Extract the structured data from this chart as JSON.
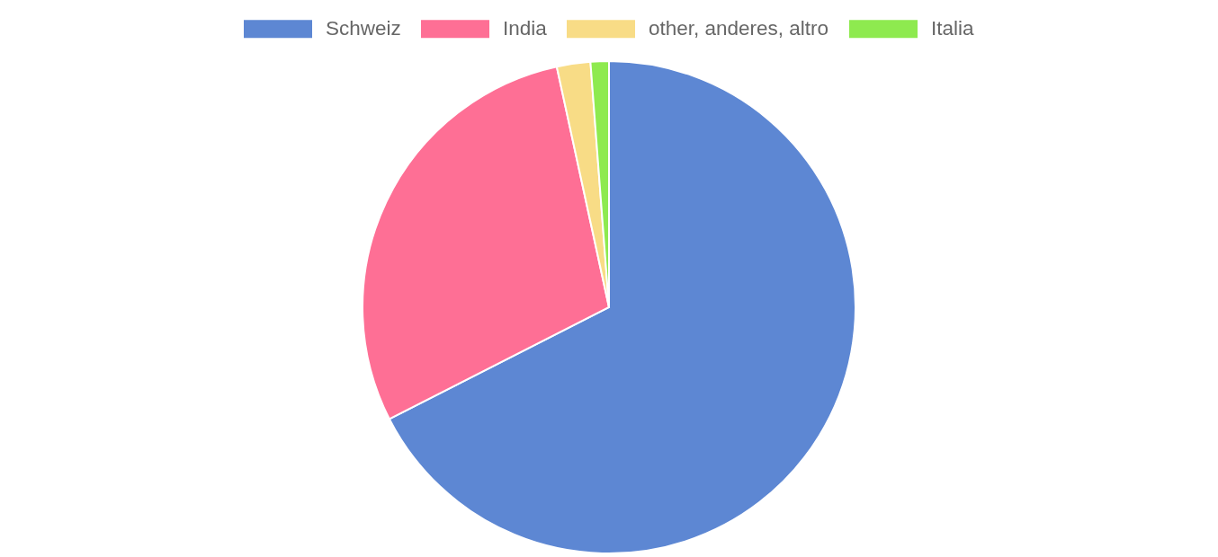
{
  "chart_data": {
    "type": "pie",
    "categories": [
      "Schweiz",
      "India",
      "other, anderes, altro",
      "Italia"
    ],
    "values": [
      67.5,
      29.1,
      2.2,
      1.2
    ],
    "colors": [
      "#5d87d3",
      "#fe6f95",
      "#f8dc86",
      "#8eea4f"
    ],
    "legend": "top"
  }
}
